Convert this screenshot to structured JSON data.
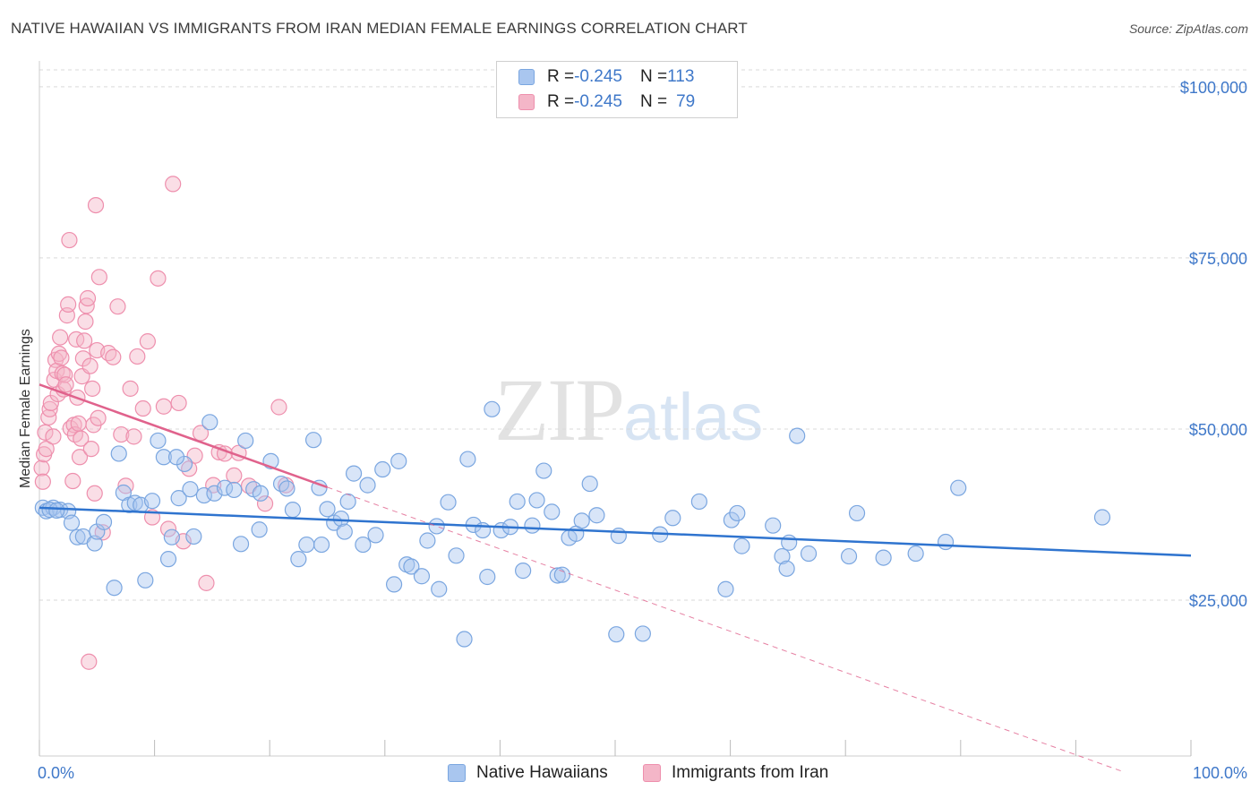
{
  "title": "NATIVE HAWAIIAN VS IMMIGRANTS FROM IRAN MEDIAN FEMALE EARNINGS CORRELATION CHART",
  "source": "Source: ZipAtlas.com",
  "watermark": {
    "zip": "ZIP",
    "atlas": "atlas"
  },
  "legend": {
    "rows": [
      {
        "r_label": "R = ",
        "r_value": "-0.245",
        "n_label": "N = ",
        "n_value": "113"
      },
      {
        "r_label": "R = ",
        "r_value": "-0.245",
        "n_label": "N = ",
        "n_value": "79"
      }
    ]
  },
  "colors": {
    "blue_fill": "#a9c6ef",
    "blue_stroke": "#7aa6e0",
    "blue_line": "#2f74cf",
    "pink_fill": "#f4b6c8",
    "pink_stroke": "#ee8fad",
    "pink_line": "#e0628c",
    "grid": "#d9d9d9",
    "axis_text": "#3f78c9"
  },
  "chart_data": {
    "type": "scatter",
    "title": "NATIVE HAWAIIAN VS IMMIGRANTS FROM IRAN MEDIAN FEMALE EARNINGS CORRELATION CHART",
    "xlabel": "",
    "ylabel": "Median Female Earnings",
    "xlim": [
      0,
      100
    ],
    "ylim": [
      0,
      105000
    ],
    "x_tick_labels": [
      "0.0%",
      "100.0%"
    ],
    "y_ticks": [
      {
        "value": 25000,
        "label": "$25,000"
      },
      {
        "value": 50000,
        "label": "$50,000"
      },
      {
        "value": 75000,
        "label": "$75,000"
      },
      {
        "value": 100000,
        "label": "$100,000"
      }
    ],
    "grid": true,
    "legend_position": "bottom",
    "series": [
      {
        "name": "Native Hawaiians",
        "color": "#a9c6ef",
        "trend": {
          "x": [
            0,
            100
          ],
          "y": [
            38500,
            31500
          ],
          "style": "solid"
        },
        "points": [
          [
            0.3,
            38500
          ],
          [
            0.6,
            38000
          ],
          [
            1.2,
            38500
          ],
          [
            1.8,
            38200
          ],
          [
            2.5,
            38000
          ],
          [
            2.8,
            36300
          ],
          [
            3.3,
            34200
          ],
          [
            3.8,
            34300
          ],
          [
            4.8,
            33300
          ],
          [
            5.0,
            35000
          ],
          [
            5.6,
            36400
          ],
          [
            6.5,
            26800
          ],
          [
            6.9,
            46400
          ],
          [
            7.3,
            40700
          ],
          [
            7.8,
            38900
          ],
          [
            8.3,
            39200
          ],
          [
            8.8,
            38900
          ],
          [
            9.2,
            27900
          ],
          [
            9.8,
            39500
          ],
          [
            10.3,
            48300
          ],
          [
            10.8,
            45900
          ],
          [
            11.2,
            31000
          ],
          [
            11.5,
            34200
          ],
          [
            12.1,
            39900
          ],
          [
            12.6,
            44900
          ],
          [
            13.1,
            41200
          ],
          [
            13.4,
            34300
          ],
          [
            14.3,
            40300
          ],
          [
            14.8,
            51000
          ],
          [
            15.2,
            40600
          ],
          [
            16.1,
            41400
          ],
          [
            16.9,
            41100
          ],
          [
            17.5,
            33200
          ],
          [
            17.9,
            48300
          ],
          [
            18.6,
            41200
          ],
          [
            19.1,
            35300
          ],
          [
            19.2,
            40600
          ],
          [
            20.1,
            45300
          ],
          [
            21.0,
            42000
          ],
          [
            21.5,
            41300
          ],
          [
            22.0,
            38200
          ],
          [
            22.5,
            31000
          ],
          [
            23.2,
            33100
          ],
          [
            23.8,
            48400
          ],
          [
            24.3,
            41400
          ],
          [
            24.5,
            33100
          ],
          [
            25.0,
            38300
          ],
          [
            25.6,
            36300
          ],
          [
            26.2,
            36900
          ],
          [
            26.8,
            39400
          ],
          [
            27.3,
            43500
          ],
          [
            28.1,
            33100
          ],
          [
            28.5,
            41800
          ],
          [
            29.2,
            34500
          ],
          [
            29.8,
            44100
          ],
          [
            30.8,
            27300
          ],
          [
            31.2,
            45300
          ],
          [
            31.9,
            30200
          ],
          [
            32.3,
            29900
          ],
          [
            33.2,
            28500
          ],
          [
            33.7,
            33700
          ],
          [
            34.5,
            35800
          ],
          [
            34.7,
            26600
          ],
          [
            35.5,
            39300
          ],
          [
            36.2,
            31500
          ],
          [
            36.9,
            19300
          ],
          [
            37.2,
            45600
          ],
          [
            37.7,
            36000
          ],
          [
            38.5,
            35200
          ],
          [
            38.9,
            28400
          ],
          [
            39.3,
            52900
          ],
          [
            40.1,
            35200
          ],
          [
            40.9,
            35700
          ],
          [
            41.5,
            39400
          ],
          [
            42.0,
            29300
          ],
          [
            42.8,
            35900
          ],
          [
            43.2,
            39600
          ],
          [
            43.8,
            43900
          ],
          [
            44.5,
            37900
          ],
          [
            45.0,
            28600
          ],
          [
            45.4,
            28700
          ],
          [
            46.0,
            34100
          ],
          [
            46.6,
            34700
          ],
          [
            47.1,
            36600
          ],
          [
            47.8,
            42000
          ],
          [
            48.4,
            37400
          ],
          [
            50.1,
            20000
          ],
          [
            50.3,
            34400
          ],
          [
            52.4,
            20100
          ],
          [
            53.9,
            34600
          ],
          [
            55.0,
            37000
          ],
          [
            57.3,
            39400
          ],
          [
            59.6,
            26600
          ],
          [
            60.1,
            36700
          ],
          [
            60.6,
            37700
          ],
          [
            61.0,
            32900
          ],
          [
            63.7,
            35900
          ],
          [
            64.5,
            31400
          ],
          [
            64.9,
            29600
          ],
          [
            65.1,
            33400
          ],
          [
            65.8,
            49000
          ],
          [
            66.8,
            31800
          ],
          [
            70.3,
            31400
          ],
          [
            71.0,
            37700
          ],
          [
            73.3,
            31200
          ],
          [
            76.1,
            31800
          ],
          [
            78.7,
            33500
          ],
          [
            79.8,
            41400
          ],
          [
            92.3,
            37100
          ],
          [
            0.9,
            38200
          ],
          [
            1.5,
            38100
          ],
          [
            11.9,
            45900
          ],
          [
            26.5,
            35000
          ]
        ]
      },
      {
        "name": "Immigrants from Iran",
        "color": "#f4b6c8",
        "trend": {
          "x": [
            0,
            25
          ],
          "y": [
            56500,
            41500
          ],
          "style": "solid",
          "extension_x": [
            25,
            94
          ],
          "extension_y": [
            41500,
            0
          ],
          "extension_style": "dashed"
        },
        "points": [
          [
            0.2,
            44300
          ],
          [
            0.3,
            42300
          ],
          [
            0.4,
            46300
          ],
          [
            0.5,
            49500
          ],
          [
            0.6,
            47100
          ],
          [
            0.8,
            51700
          ],
          [
            0.9,
            52900
          ],
          [
            1.0,
            53800
          ],
          [
            1.2,
            48900
          ],
          [
            1.3,
            57200
          ],
          [
            1.4,
            60100
          ],
          [
            1.5,
            58500
          ],
          [
            1.6,
            55100
          ],
          [
            1.7,
            61000
          ],
          [
            1.8,
            63400
          ],
          [
            1.9,
            60400
          ],
          [
            2.0,
            58100
          ],
          [
            2.1,
            55800
          ],
          [
            2.2,
            57900
          ],
          [
            2.3,
            56500
          ],
          [
            2.4,
            66600
          ],
          [
            2.5,
            68200
          ],
          [
            2.6,
            77600
          ],
          [
            2.7,
            50100
          ],
          [
            2.9,
            42400
          ],
          [
            3.0,
            50600
          ],
          [
            3.1,
            49200
          ],
          [
            3.2,
            63100
          ],
          [
            3.3,
            54600
          ],
          [
            3.4,
            50800
          ],
          [
            3.5,
            45900
          ],
          [
            3.6,
            48600
          ],
          [
            3.7,
            57700
          ],
          [
            3.8,
            60300
          ],
          [
            3.9,
            62900
          ],
          [
            4.0,
            65700
          ],
          [
            4.1,
            68000
          ],
          [
            4.2,
            69100
          ],
          [
            4.3,
            16000
          ],
          [
            4.4,
            59200
          ],
          [
            4.5,
            47100
          ],
          [
            4.6,
            55900
          ],
          [
            4.7,
            50600
          ],
          [
            4.8,
            40600
          ],
          [
            4.9,
            82700
          ],
          [
            5.0,
            61500
          ],
          [
            5.1,
            51600
          ],
          [
            5.2,
            72200
          ],
          [
            5.5,
            34900
          ],
          [
            6.0,
            61100
          ],
          [
            6.4,
            60500
          ],
          [
            6.8,
            67900
          ],
          [
            7.1,
            49200
          ],
          [
            7.5,
            41700
          ],
          [
            7.9,
            55900
          ],
          [
            8.2,
            48900
          ],
          [
            8.5,
            60600
          ],
          [
            9.0,
            53000
          ],
          [
            9.4,
            62800
          ],
          [
            9.8,
            37100
          ],
          [
            10.3,
            72000
          ],
          [
            10.8,
            53300
          ],
          [
            11.2,
            35400
          ],
          [
            11.6,
            85800
          ],
          [
            12.1,
            53800
          ],
          [
            12.5,
            33600
          ],
          [
            13.0,
            44200
          ],
          [
            13.5,
            46100
          ],
          [
            14.0,
            49400
          ],
          [
            14.5,
            27500
          ],
          [
            15.1,
            41800
          ],
          [
            15.6,
            46600
          ],
          [
            16.1,
            46400
          ],
          [
            16.9,
            43200
          ],
          [
            17.3,
            46500
          ],
          [
            18.2,
            41700
          ],
          [
            19.6,
            39100
          ],
          [
            20.8,
            53200
          ],
          [
            21.4,
            41800
          ]
        ]
      }
    ]
  }
}
